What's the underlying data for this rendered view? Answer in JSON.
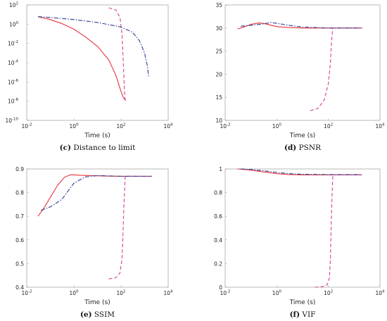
{
  "chart_data": [
    {
      "type": "line",
      "panel": "c",
      "caption_letter": "(c)",
      "caption_text": "Distance to limit",
      "xlabel": "Time (s)",
      "ylabel": "",
      "xscale": "log",
      "yscale": "log",
      "xlim": [
        0.01,
        10000
      ],
      "ylim": [
        1e-10,
        100
      ],
      "xticks": [
        {
          "base": "10",
          "exp": "-2"
        },
        {
          "base": "10",
          "exp": "0"
        },
        {
          "base": "10",
          "exp": "2"
        },
        {
          "base": "10",
          "exp": "4"
        }
      ],
      "yticks": [
        {
          "base": "10",
          "exp": "2"
        },
        {
          "base": "10",
          "exp": "0"
        },
        {
          "base": "10",
          "exp": "-2"
        },
        {
          "base": "10",
          "exp": "-4"
        },
        {
          "base": "10",
          "exp": "-6"
        },
        {
          "base": "10",
          "exp": "-8"
        },
        {
          "base": "10",
          "exp": "-10"
        }
      ],
      "grid": false,
      "series": [
        {
          "color": "#e8333c",
          "style": "solid",
          "x": [
            0.03,
            0.1,
            0.3,
            1,
            3,
            10,
            30,
            60,
            100,
            130,
            150,
            160
          ],
          "y": [
            6,
            3,
            1.2,
            0.3,
            0.05,
            0.005,
            0.0002,
            5e-06,
            1e-07,
            2e-08,
            1.5e-08,
            1.2e-08
          ]
        },
        {
          "color": "#d1409a",
          "style": "dashed",
          "x": [
            30,
            60,
            90,
            110,
            120,
            130,
            140,
            150
          ],
          "y": [
            50,
            30,
            5,
            0.1,
            0.001,
            1e-05,
            1e-07,
            1e-08
          ]
        },
        {
          "color": "#2a3c8f",
          "style": "dashdot",
          "x": [
            0.03,
            0.1,
            1,
            10,
            100,
            300,
            600,
            1000,
            1300,
            1500
          ],
          "y": [
            6,
            5,
            3,
            1.5,
            0.5,
            0.15,
            0.02,
            0.001,
            5e-05,
            3e-06
          ]
        }
      ]
    },
    {
      "type": "line",
      "panel": "d",
      "caption_letter": "(d)",
      "caption_text": "PSNR",
      "xlabel": "Time (s)",
      "ylabel": "",
      "xscale": "log",
      "yscale": "linear",
      "xlim": [
        0.01,
        10000
      ],
      "ylim": [
        10,
        35
      ],
      "xticks": [
        {
          "base": "10",
          "exp": "-2"
        },
        {
          "base": "10",
          "exp": "0"
        },
        {
          "base": "10",
          "exp": "2"
        },
        {
          "base": "10",
          "exp": "4"
        }
      ],
      "yticks": [
        {
          "base": "35",
          "exp": ""
        },
        {
          "base": "30",
          "exp": ""
        },
        {
          "base": "25",
          "exp": ""
        },
        {
          "base": "20",
          "exp": ""
        },
        {
          "base": "15",
          "exp": ""
        },
        {
          "base": "10",
          "exp": ""
        }
      ],
      "grid": false,
      "series": [
        {
          "color": "#e8333c",
          "style": "solid",
          "x": [
            0.03,
            0.06,
            0.1,
            0.2,
            0.3,
            0.5,
            1,
            3,
            10,
            100,
            2000
          ],
          "y": [
            29.8,
            30.3,
            30.8,
            31.1,
            31.0,
            30.7,
            30.3,
            30.1,
            30.0,
            30.0,
            30.0
          ]
        },
        {
          "color": "#d1409a",
          "style": "dashed",
          "x": [
            20,
            40,
            70,
            100,
            120,
            130,
            140,
            150,
            400,
            2000
          ],
          "y": [
            12.1,
            12.6,
            14.5,
            18,
            22.5,
            26,
            28.5,
            30.0,
            30.0,
            30.0
          ]
        },
        {
          "color": "#2a3c8f",
          "style": "dashdot",
          "x": [
            0.04,
            0.1,
            0.3,
            0.6,
            1,
            3,
            10,
            100,
            2000
          ],
          "y": [
            30.4,
            30.6,
            30.9,
            31.2,
            31.0,
            30.6,
            30.2,
            30.0,
            30.0
          ]
        }
      ]
    },
    {
      "type": "line",
      "panel": "e",
      "caption_letter": "(e)",
      "caption_text": "SSIM",
      "xlabel": "Time (s)",
      "ylabel": "",
      "xscale": "log",
      "yscale": "linear",
      "xlim": [
        0.01,
        10000
      ],
      "ylim": [
        0.4,
        0.9
      ],
      "xticks": [
        {
          "base": "10",
          "exp": "-2"
        },
        {
          "base": "10",
          "exp": "0"
        },
        {
          "base": "10",
          "exp": "2"
        },
        {
          "base": "10",
          "exp": "4"
        }
      ],
      "yticks": [
        {
          "base": "0.9",
          "exp": ""
        },
        {
          "base": "0.8",
          "exp": ""
        },
        {
          "base": "0.7",
          "exp": ""
        },
        {
          "base": "0.6",
          "exp": ""
        },
        {
          "base": "0.5",
          "exp": ""
        },
        {
          "base": "0.4",
          "exp": ""
        }
      ],
      "grid": false,
      "series": [
        {
          "color": "#e8333c",
          "style": "solid",
          "x": [
            0.03,
            0.05,
            0.1,
            0.2,
            0.4,
            0.7,
            1,
            2,
            5,
            20,
            100,
            2000
          ],
          "y": [
            0.7,
            0.73,
            0.78,
            0.83,
            0.865,
            0.875,
            0.875,
            0.873,
            0.872,
            0.87,
            0.869,
            0.869
          ]
        },
        {
          "color": "#d1409a",
          "style": "dashed",
          "x": [
            30,
            60,
            90,
            110,
            120,
            130,
            140,
            150,
            400,
            2000
          ],
          "y": [
            0.435,
            0.44,
            0.46,
            0.52,
            0.62,
            0.72,
            0.8,
            0.869,
            0.869,
            0.869
          ]
        },
        {
          "color": "#2a3c8f",
          "style": "dashdot",
          "x": [
            0.04,
            0.1,
            0.3,
            0.6,
            1,
            3,
            10,
            100,
            2000
          ],
          "y": [
            0.725,
            0.74,
            0.77,
            0.81,
            0.84,
            0.866,
            0.872,
            0.869,
            0.869
          ]
        }
      ]
    },
    {
      "type": "line",
      "panel": "f",
      "caption_letter": "(f)",
      "caption_text": "VIF",
      "xlabel": "Time (s)",
      "ylabel": "",
      "xscale": "log",
      "yscale": "linear",
      "xlim": [
        0.01,
        10000
      ],
      "ylim": [
        0,
        1
      ],
      "xticks": [
        {
          "base": "10",
          "exp": "-2"
        },
        {
          "base": "10",
          "exp": "0"
        },
        {
          "base": "10",
          "exp": "2"
        },
        {
          "base": "10",
          "exp": "4"
        }
      ],
      "yticks": [
        {
          "base": "1",
          "exp": ""
        },
        {
          "base": "0.8",
          "exp": ""
        },
        {
          "base": "0.6",
          "exp": ""
        },
        {
          "base": "0.4",
          "exp": ""
        },
        {
          "base": "0.2",
          "exp": ""
        },
        {
          "base": "0",
          "exp": ""
        }
      ],
      "grid": false,
      "series": [
        {
          "color": "#e8333c",
          "style": "solid",
          "x": [
            0.03,
            0.1,
            0.3,
            1,
            3,
            10,
            100,
            2000
          ],
          "y": [
            1.0,
            0.99,
            0.975,
            0.96,
            0.953,
            0.95,
            0.95,
            0.95
          ]
        },
        {
          "color": "#d1409a",
          "style": "dashed",
          "x": [
            30,
            60,
            90,
            110,
            120,
            130,
            140,
            150,
            400,
            2000
          ],
          "y": [
            0.0,
            0.005,
            0.02,
            0.08,
            0.25,
            0.55,
            0.8,
            0.95,
            0.95,
            0.95
          ]
        },
        {
          "color": "#2a3c8f",
          "style": "dashdot",
          "x": [
            0.04,
            0.1,
            0.3,
            1,
            3,
            10,
            100,
            2000
          ],
          "y": [
            1.0,
            0.995,
            0.985,
            0.97,
            0.96,
            0.955,
            0.952,
            0.952
          ]
        }
      ]
    }
  ]
}
